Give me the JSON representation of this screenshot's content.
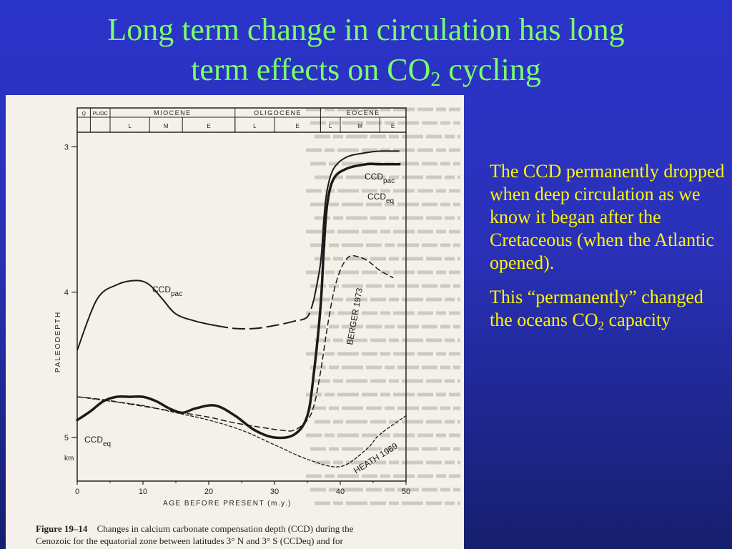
{
  "slide": {
    "title_line1": "Long term change in circulation has long",
    "title_line2_a": "term effects on CO",
    "title_line2_sub": "2",
    "title_line2_b": " cycling",
    "paragraph1": "The CCD permanently dropped when deep circulation as we know it began after the Cretaceous (when the Atlantic opened).",
    "paragraph2_a": "This “permanently” changed the oceans CO",
    "paragraph2_sub": "2",
    "paragraph2_b": " capacity",
    "bg_top": "#2b34c9",
    "bg_bottom": "#161e6e",
    "title_color": "#7CFF6A",
    "text_color": "#FFF600"
  },
  "chart_data": {
    "type": "line",
    "xlabel": "AGE BEFORE PRESENT (m.y.)",
    "ylabel": "PALEODEPTH",
    "y_unit": "km",
    "xlim": [
      0,
      50
    ],
    "ylim": [
      5.3,
      2.9
    ],
    "x_ticks": [
      0,
      10,
      20,
      30,
      40,
      50
    ],
    "y_ticks": [
      3,
      4,
      5
    ],
    "epochs": [
      {
        "name": "Q",
        "start": 0,
        "end": 2
      },
      {
        "name": "PLIOC",
        "start": 2,
        "end": 5
      },
      {
        "name": "MIOCENE",
        "start": 5,
        "end": 24
      },
      {
        "name": "OLIGOCENE",
        "start": 24,
        "end": 37
      },
      {
        "name": "EOCENE",
        "start": 37,
        "end": 52
      }
    ],
    "subepochs": [
      {
        "name": "L",
        "start": 5,
        "end": 11
      },
      {
        "name": "M",
        "start": 11,
        "end": 16
      },
      {
        "name": "E",
        "start": 16,
        "end": 24
      },
      {
        "name": "L",
        "start": 24,
        "end": 30
      },
      {
        "name": "E",
        "start": 30,
        "end": 37
      },
      {
        "name": "L",
        "start": 37,
        "end": 40
      },
      {
        "name": "M",
        "start": 40,
        "end": 46
      },
      {
        "name": "E",
        "start": 46,
        "end": 52
      }
    ],
    "series": [
      {
        "name": "CCDpac",
        "label_main": "CCD",
        "label_sub": "pac",
        "style": "solid-dashed",
        "width": 2,
        "x": [
          0,
          3,
          6,
          9,
          11,
          13,
          15,
          18,
          21,
          24,
          27,
          30,
          33,
          35,
          36,
          37,
          37.5,
          38,
          39,
          41,
          44,
          46,
          49
        ],
        "y": [
          4.4,
          4.05,
          3.95,
          3.92,
          3.95,
          4.05,
          4.15,
          4.2,
          4.23,
          4.25,
          4.25,
          4.23,
          4.2,
          4.17,
          4.05,
          3.8,
          3.5,
          3.3,
          3.15,
          3.07,
          3.04,
          3.03,
          3.03
        ]
      },
      {
        "name": "CCDeq",
        "label_main": "CCD",
        "label_sub": "eq",
        "style": "solid",
        "width": 3.5,
        "x": [
          0,
          2,
          4,
          6,
          8,
          10,
          12,
          14,
          16,
          18,
          21,
          24,
          27,
          30,
          33,
          35,
          36,
          37,
          37.5,
          38,
          39,
          41,
          44,
          46,
          49
        ],
        "y": [
          4.88,
          4.82,
          4.75,
          4.72,
          4.72,
          4.72,
          4.75,
          4.8,
          4.83,
          4.8,
          4.78,
          4.85,
          4.95,
          5.0,
          4.98,
          4.85,
          4.55,
          4.1,
          3.7,
          3.4,
          3.22,
          3.15,
          3.12,
          3.12,
          3.12
        ]
      },
      {
        "name": "BERGER 1973",
        "label_main": "BERGER 1973",
        "label_sub": "",
        "style": "dashed",
        "width": 1.5,
        "x": [
          0,
          4,
          8,
          12,
          16,
          20,
          24,
          28,
          31,
          33,
          35,
          36,
          37,
          38,
          39,
          40,
          41,
          42,
          44,
          46,
          48
        ],
        "y": [
          4.72,
          4.74,
          4.77,
          4.8,
          4.83,
          4.86,
          4.9,
          4.93,
          4.95,
          4.95,
          4.88,
          4.78,
          4.55,
          4.25,
          4.0,
          3.85,
          3.77,
          3.75,
          3.78,
          3.85,
          3.9
        ]
      },
      {
        "name": "HEATH 1969",
        "label_main": "HEATH 1969",
        "label_sub": "",
        "style": "dashed",
        "width": 1.3,
        "x": [
          0,
          5,
          10,
          15,
          20,
          25,
          30,
          35,
          40,
          44,
          46,
          50
        ],
        "y": [
          4.72,
          4.75,
          4.78,
          4.83,
          4.88,
          4.95,
          5.05,
          5.15,
          5.2,
          5.08,
          4.98,
          4.85
        ]
      }
    ],
    "caption_bold": "Figure 19–14",
    "caption_line1": "Changes in calcium carbonate compensation depth (CCD) during the",
    "caption_line2": "Cenozoic for the equatorial zone between latitudes 3° N and 3° S (CCDeq) and for"
  }
}
